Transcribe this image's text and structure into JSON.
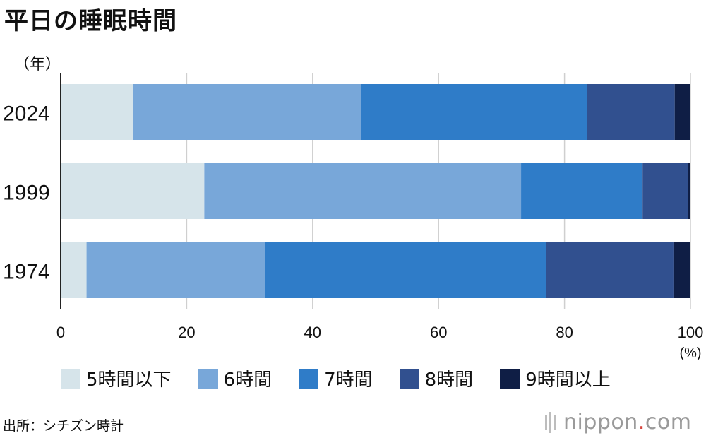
{
  "title": "平日の睡眠時間",
  "source": "出所：シチズン時計",
  "logo": {
    "prefix": "nippon",
    "dot": ".",
    "suffix": "com"
  },
  "chart_data": {
    "type": "bar",
    "orientation": "horizontal",
    "stacked": true,
    "ylabel": "（年）",
    "xunit": "(%)",
    "xlim": [
      0,
      100
    ],
    "xticks": [
      0,
      20,
      40,
      60,
      80,
      100
    ],
    "grid": true,
    "legend_position": "bottom",
    "categories": [
      "2024",
      "1999",
      "1974"
    ],
    "series": [
      {
        "name": "5時間以下",
        "color": "#d6e4ea",
        "values": [
          11.5,
          22.8,
          4.1
        ]
      },
      {
        "name": "6時間",
        "color": "#78a7d9",
        "values": [
          36.2,
          50.3,
          28.3
        ]
      },
      {
        "name": "7時間",
        "color": "#2f7cc8",
        "values": [
          35.9,
          19.3,
          44.7
        ]
      },
      {
        "name": "8時間",
        "color": "#31508f",
        "values": [
          13.9,
          7.2,
          20.2
        ]
      },
      {
        "name": "9時間以上",
        "color": "#0f1e45",
        "values": [
          2.5,
          0.4,
          2.7
        ]
      }
    ]
  }
}
